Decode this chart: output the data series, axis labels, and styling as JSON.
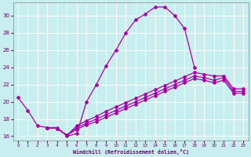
{
  "xlabel": "Windchill (Refroidissement éolien,°C)",
  "bg_color": "#c8eef0",
  "grid_color": "#aadddd",
  "line_color": "#aa00aa",
  "xlim": [
    -0.5,
    23.5
  ],
  "ylim": [
    15.5,
    31.5
  ],
  "xticks": [
    0,
    1,
    2,
    3,
    4,
    5,
    6,
    7,
    8,
    9,
    10,
    11,
    12,
    13,
    14,
    15,
    16,
    17,
    18,
    19,
    20,
    21,
    22,
    23
  ],
  "yticks": [
    16,
    18,
    20,
    22,
    24,
    26,
    28,
    30
  ],
  "line1_x": [
    0,
    1,
    2,
    3,
    4,
    5,
    6,
    7,
    8,
    9,
    10,
    11,
    12,
    13,
    14,
    15,
    16,
    17,
    18
  ],
  "line1_y": [
    20.5,
    19.0,
    17.2,
    17.0,
    17.0,
    16.0,
    16.3,
    20.0,
    22.0,
    24.2,
    26.0,
    28.0,
    29.5,
    30.2,
    31.0,
    31.0,
    30.0,
    28.5,
    24.0
  ],
  "line2_x": [
    3,
    4,
    5,
    6,
    7,
    8,
    9,
    10,
    11,
    12,
    13,
    14,
    15,
    16,
    17,
    18,
    19,
    20,
    21,
    22,
    23
  ],
  "line2_y": [
    17.0,
    16.9,
    16.1,
    17.2,
    17.8,
    18.3,
    18.9,
    19.4,
    19.9,
    20.4,
    20.9,
    21.4,
    21.9,
    22.4,
    22.9,
    23.4,
    23.2,
    23.0,
    23.0,
    21.5,
    21.5
  ],
  "line3_x": [
    3,
    4,
    5,
    6,
    7,
    8,
    9,
    10,
    11,
    12,
    13,
    14,
    15,
    16,
    17,
    18,
    19,
    20,
    21,
    22,
    23
  ],
  "line3_y": [
    17.0,
    16.9,
    16.1,
    17.0,
    17.5,
    18.0,
    18.5,
    19.0,
    19.5,
    20.0,
    20.5,
    21.0,
    21.5,
    22.0,
    22.5,
    23.0,
    22.8,
    22.5,
    22.8,
    21.2,
    21.2
  ],
  "line4_x": [
    3,
    4,
    5,
    6,
    7,
    8,
    9,
    10,
    11,
    12,
    13,
    14,
    15,
    16,
    17,
    18,
    19,
    20,
    21,
    22,
    23
  ],
  "line4_y": [
    17.0,
    16.9,
    16.1,
    16.8,
    17.3,
    17.7,
    18.2,
    18.7,
    19.2,
    19.7,
    20.2,
    20.7,
    21.2,
    21.7,
    22.2,
    22.7,
    22.5,
    22.2,
    22.5,
    21.0,
    21.0
  ]
}
